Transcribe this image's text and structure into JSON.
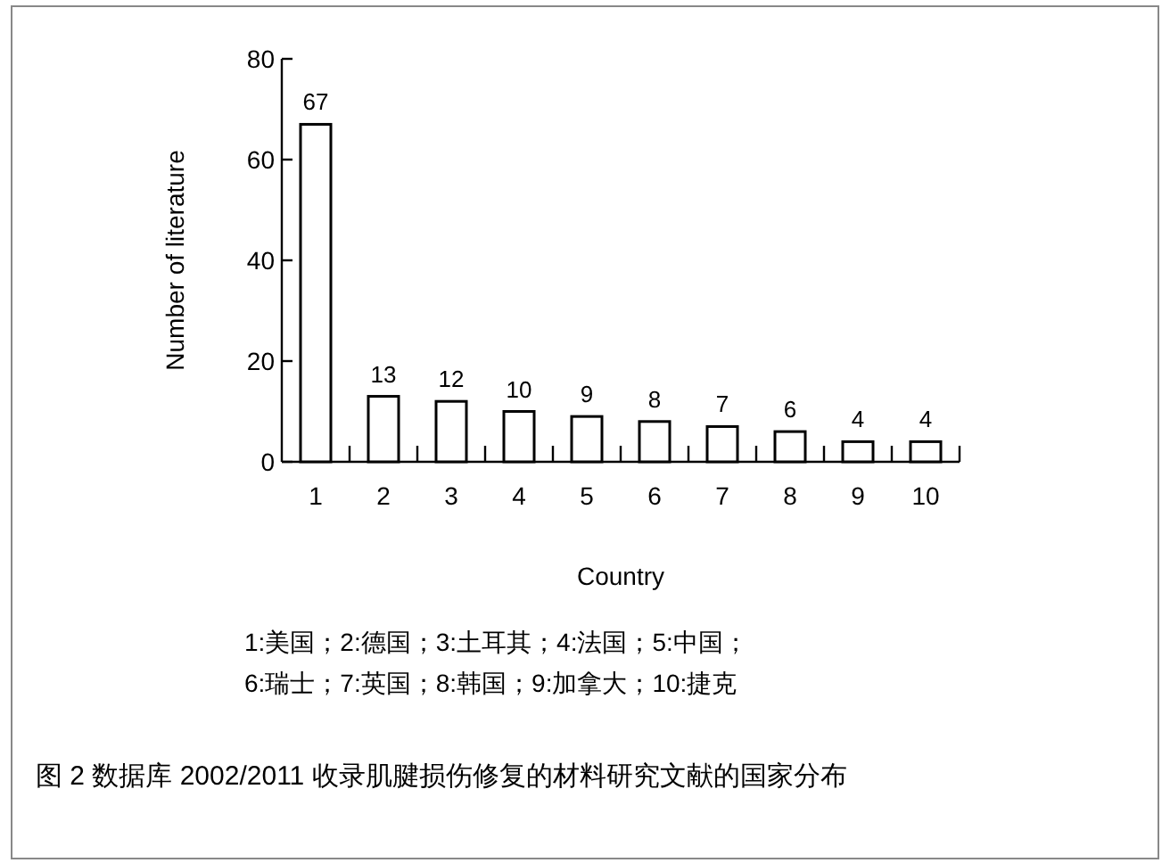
{
  "chart_data": {
    "type": "bar",
    "xlabel": "Country",
    "ylabel": "Number of literature",
    "categories": [
      "1",
      "2",
      "3",
      "4",
      "5",
      "6",
      "7",
      "8",
      "9",
      "10"
    ],
    "values": [
      67,
      13,
      12,
      10,
      9,
      8,
      7,
      6,
      4,
      4
    ],
    "color": "#ffffff",
    "ylim": [
      0,
      80
    ],
    "yticks": [
      0,
      20,
      40,
      60,
      80
    ],
    "data_labels": true,
    "annotations": [
      "1:美国；2:德国；3:土耳其；4:法国；5:中国；",
      "6:瑞士；7:英国；8:韩国；9:加拿大；10:捷克",
      "图 2  数据库 2002/2011 收录肌腱损伤修复的材料研究文献的国家分布"
    ]
  }
}
